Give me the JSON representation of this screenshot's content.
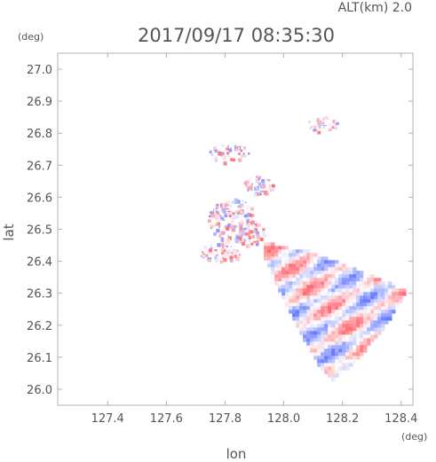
{
  "header": {
    "altitude_label": "ALT(km)  2.0",
    "timestamp": "2017/09/17 08:35:30"
  },
  "colors": {
    "frame": "#b0b0b0",
    "text": "#555555",
    "positive": "#f06070",
    "negative": "#6a7cf0"
  },
  "chart_data": {
    "type": "scatter",
    "xlabel": "lon",
    "ylabel": "lat",
    "x_unit": "(deg)",
    "y_unit": "(deg)",
    "xlim": [
      127.23,
      128.44
    ],
    "ylim": [
      25.95,
      27.05
    ],
    "x_ticks": [
      127.4,
      127.6,
      127.8,
      128.0,
      128.2,
      128.4
    ],
    "x_tick_labels": [
      "127.4",
      "127.6",
      "127.8",
      "128.0",
      "128.2",
      "128.4"
    ],
    "y_ticks": [
      26.0,
      26.1,
      26.2,
      26.3,
      26.4,
      26.5,
      26.6,
      26.7,
      26.8,
      26.9,
      27.0
    ],
    "y_tick_labels": [
      "26.0",
      "26.1",
      "26.2",
      "26.3",
      "26.4",
      "26.5",
      "26.6",
      "26.7",
      "26.8",
      "26.9",
      "27.0"
    ],
    "grid": false,
    "main_sector": [
      [
        127.93,
        26.46
      ],
      [
        128.1,
        26.43
      ],
      [
        128.42,
        26.31
      ],
      [
        128.35,
        26.2
      ],
      [
        128.24,
        26.08
      ],
      [
        128.17,
        26.03
      ],
      [
        128.12,
        26.07
      ],
      [
        128.02,
        26.24
      ],
      [
        127.93,
        26.42
      ]
    ],
    "echo_clusters": [
      {
        "lon": 128.13,
        "lat": 26.83,
        "rx": 0.05,
        "ry": 0.025,
        "count": 40
      },
      {
        "lon": 127.81,
        "lat": 26.74,
        "rx": 0.07,
        "ry": 0.03,
        "count": 55
      },
      {
        "lon": 127.91,
        "lat": 26.64,
        "rx": 0.05,
        "ry": 0.03,
        "count": 60
      },
      {
        "lon": 127.82,
        "lat": 26.53,
        "rx": 0.08,
        "ry": 0.07,
        "count": 180
      },
      {
        "lon": 127.78,
        "lat": 26.43,
        "rx": 0.07,
        "ry": 0.03,
        "count": 60
      },
      {
        "lon": 127.88,
        "lat": 26.49,
        "rx": 0.05,
        "ry": 0.04,
        "count": 70
      }
    ]
  }
}
